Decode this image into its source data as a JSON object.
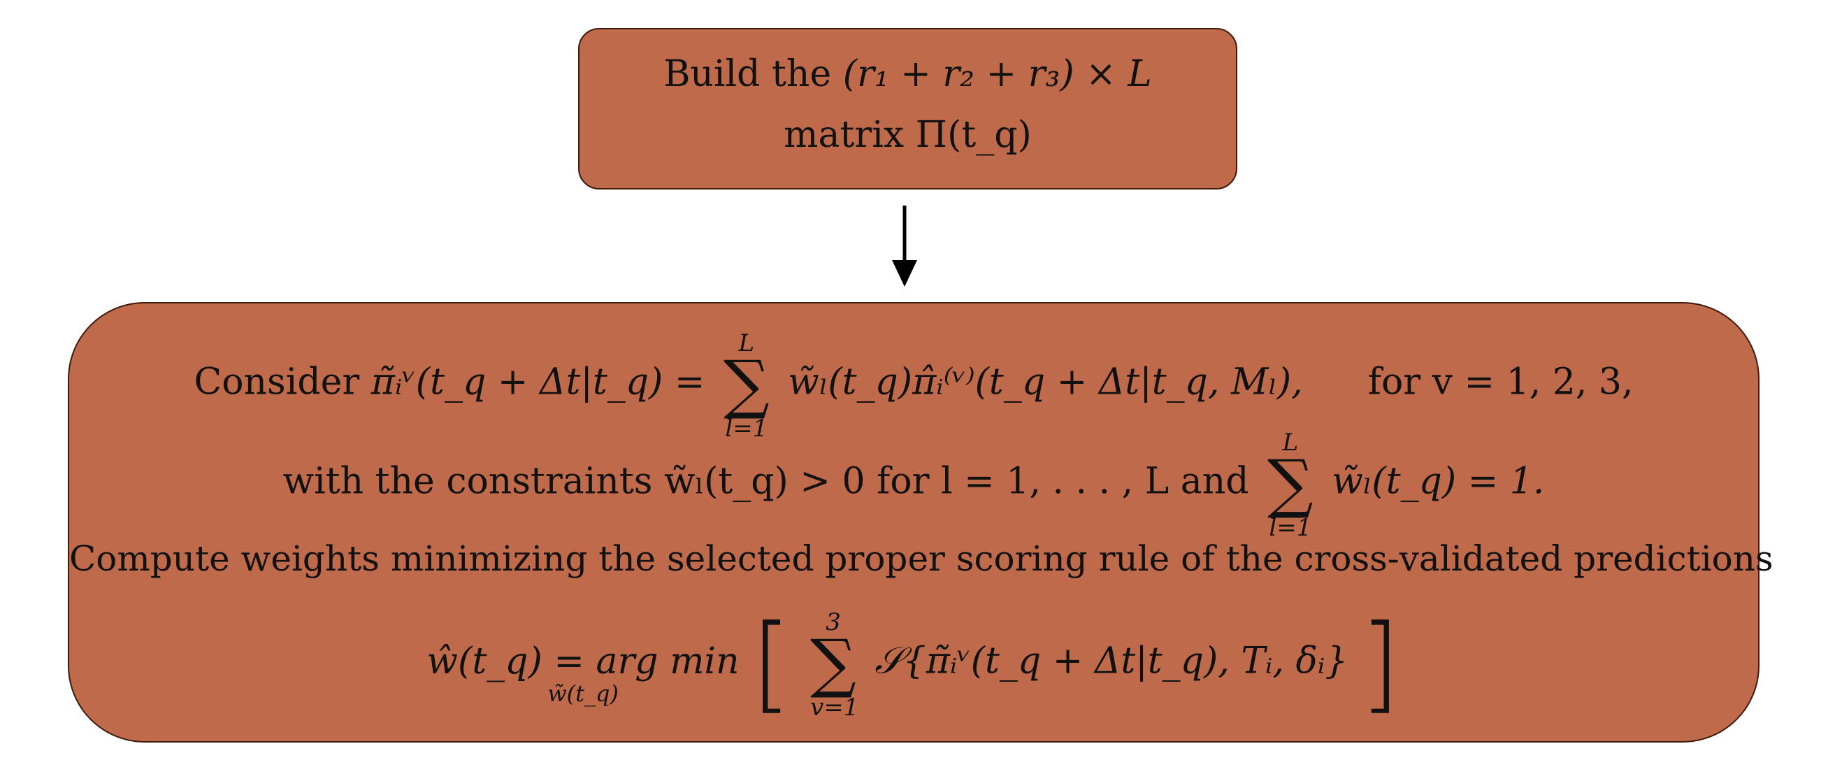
{
  "diagram": {
    "top_box": {
      "line1_prefix": "Build the",
      "line1_math": "(r₁ + r₂ + r₃) × L",
      "line2": "matrix Π(t_q)"
    },
    "bottom_box": {
      "line1_prefix": "Consider",
      "line1_lhs": "π̃ᵢᵛ(t_q + Δt|t_q) =",
      "line1_sum_top": "L",
      "line1_sum_bottom": "l=1",
      "line1_rhs": "w̃ₗ(t_q)π̂ᵢ⁽ᵛ⁾(t_q + Δt|t_q, Mₗ),",
      "line1_suffix": "for v = 1, 2, 3,",
      "line2_prefix": "with the constraints w̃ₗ(t_q) > 0 for l = 1, . . . , L and",
      "line2_sum_top": "L",
      "line2_sum_bottom": "l=1",
      "line2_suffix": "w̃ₗ(t_q) = 1.",
      "line3": "Compute weights minimizing the selected proper scoring rule of the cross-validated predictions",
      "line4_lhs": "ŵ(t_q) = arg min",
      "line4_under": "w̃(t_q)",
      "line4_sum_top": "3",
      "line4_sum_bottom": "v=1",
      "line4_rhs": "𝒮{π̃ᵢᵛ(t_q + Δt|t_q), Tᵢ, δᵢ}"
    }
  }
}
